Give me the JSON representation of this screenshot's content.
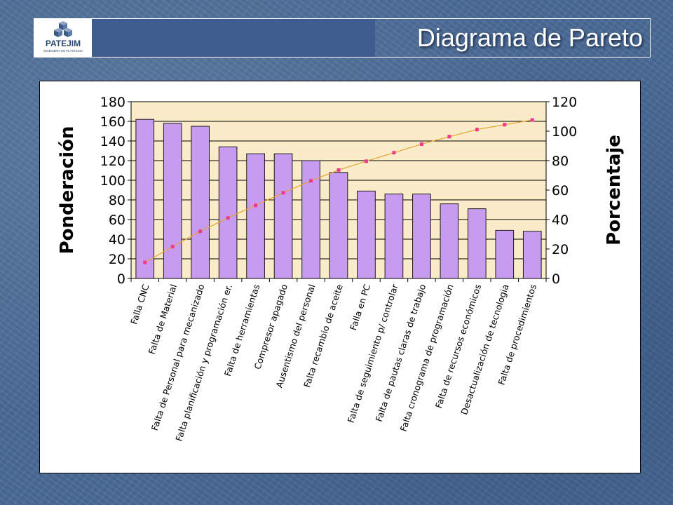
{
  "header": {
    "title": "Diagrama de Pareto",
    "logo_name": "PATEJIM",
    "logo_tagline": "INGENIERIA EN PLASTICOS"
  },
  "colors": {
    "bar_fill": "#c79cf0",
    "bar_stroke": "#1a1a1a",
    "line": "#e8a230",
    "marker": "#f0388c",
    "plot_bg": "#faecc8",
    "header_band": "#3e5d8e"
  },
  "chart_data": {
    "type": "bar",
    "categories": [
      "Falla CNC",
      "Falta de Material",
      "Falta de Personal para mecanizado",
      "Falta planificación y programación er.",
      "Falta de herramientas",
      "Compresor apagado",
      "Ausentismo del personal",
      "Falta recambio de aceite",
      "Falla en PC",
      "Falta de seguimiento p/ controlar",
      "Falta de pautas claras de trabajo",
      "Falta cronograma de programación",
      "Falta de recursos económicos",
      "Desactualización de tecnologia",
      "Falta de procedimientos"
    ],
    "series": [
      {
        "type": "bar",
        "axis": "left",
        "values": [
          162,
          158,
          155,
          134,
          127,
          127,
          120,
          108,
          89,
          86,
          86,
          76,
          71,
          49,
          48
        ]
      },
      {
        "type": "line",
        "axis": "right",
        "values": [
          10.9,
          21.6,
          32.0,
          41.1,
          49.6,
          58.2,
          66.3,
          73.6,
          79.6,
          85.4,
          91.2,
          96.3,
          101.1,
          104.4,
          107.6
        ]
      }
    ],
    "ylabel": "Ponderación",
    "ylabel_right": "Porcentaje",
    "ylim": [
      0,
      180
    ],
    "ylim_right": [
      0,
      120
    ],
    "yticks": [
      0,
      20,
      40,
      60,
      80,
      100,
      120,
      140,
      160,
      180
    ],
    "yticks_right": [
      0,
      20,
      40,
      60,
      80,
      100,
      120
    ],
    "grid": true,
    "legend": "none"
  }
}
